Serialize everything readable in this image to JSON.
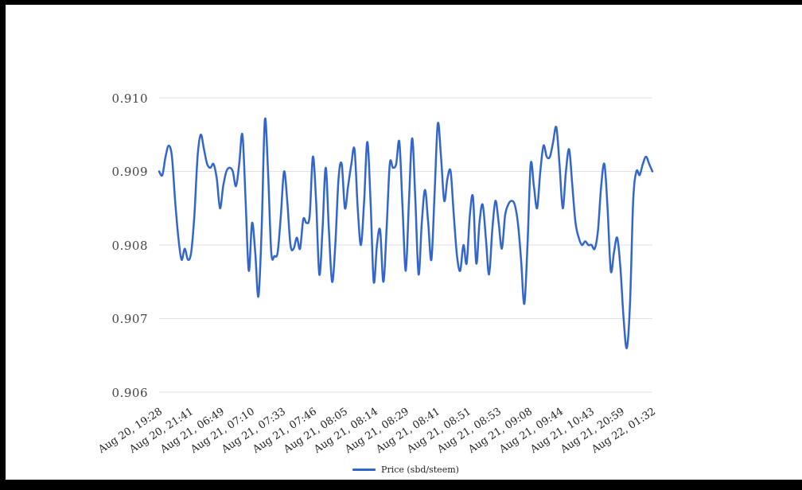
{
  "window": {
    "frame_color": "#000000",
    "background": "#ffffff"
  },
  "chart_data": {
    "type": "line",
    "title": "",
    "grid": true,
    "legend_position": "bottom",
    "line_color": "#3366cc",
    "gridline_color": "#e2e2e2",
    "ylim": [
      0.906,
      0.91
    ],
    "y_tick_labels": [
      "0.910",
      "0.909",
      "0.908",
      "0.907",
      "0.906"
    ],
    "y_ticks": [
      0.91,
      0.909,
      0.908,
      0.907,
      0.906
    ],
    "x_tick_labels": [
      "Aug 20, 19:28",
      "Aug 20, 21:41",
      "Aug 21, 06:49",
      "Aug 21, 07:10",
      "Aug 21, 07:33",
      "Aug 21, 07:46",
      "Aug 21, 08:05",
      "Aug 21, 08:14",
      "Aug 21, 08:29",
      "Aug 21, 08:41",
      "Aug 21, 08:51",
      "Aug 21, 08:53",
      "Aug 21, 09:08",
      "Aug 21, 09:44",
      "Aug 21, 10:43",
      "Aug 21, 20:59",
      "Aug 22, 01:32"
    ],
    "series": [
      {
        "name": "Price (sbd/steem)",
        "color": "#3366cc",
        "values": [
          0.909,
          0.90895,
          0.9092,
          0.90935,
          0.9092,
          0.9086,
          0.9081,
          0.9078,
          0.90795,
          0.9078,
          0.9079,
          0.9084,
          0.9092,
          0.9095,
          0.9093,
          0.9091,
          0.90905,
          0.9091,
          0.9089,
          0.9085,
          0.9088,
          0.909,
          0.90905,
          0.909,
          0.9088,
          0.9091,
          0.9095,
          0.9086,
          0.90765,
          0.9083,
          0.9079,
          0.9073,
          0.9082,
          0.9097,
          0.909,
          0.9079,
          0.90785,
          0.9079,
          0.9084,
          0.909,
          0.9086,
          0.908,
          0.90795,
          0.9081,
          0.90795,
          0.90835,
          0.9083,
          0.9084,
          0.9092,
          0.9086,
          0.9076,
          0.9082,
          0.90905,
          0.9082,
          0.9075,
          0.908,
          0.9089,
          0.9091,
          0.9085,
          0.9088,
          0.9091,
          0.9093,
          0.9085,
          0.908,
          0.9086,
          0.9094,
          0.9086,
          0.9075,
          0.908,
          0.9082,
          0.9075,
          0.9082,
          0.9091,
          0.90905,
          0.9091,
          0.9094,
          0.9085,
          0.90765,
          0.9086,
          0.90945,
          0.9086,
          0.9076,
          0.9083,
          0.90875,
          0.9083,
          0.9078,
          0.9087,
          0.90965,
          0.9092,
          0.9086,
          0.9089,
          0.909,
          0.9084,
          0.90785,
          0.90765,
          0.908,
          0.90775,
          0.9084,
          0.90865,
          0.90775,
          0.9083,
          0.90855,
          0.9081,
          0.9076,
          0.9082,
          0.9086,
          0.9083,
          0.90795,
          0.9084,
          0.90855,
          0.9086,
          0.90855,
          0.9083,
          0.9078,
          0.9072,
          0.908,
          0.9091,
          0.9088,
          0.9085,
          0.909,
          0.90935,
          0.9092,
          0.9092,
          0.9094,
          0.9096,
          0.9091,
          0.9085,
          0.909,
          0.9093,
          0.9088,
          0.9083,
          0.9081,
          0.908,
          0.90805,
          0.908,
          0.908,
          0.90795,
          0.9082,
          0.9088,
          0.9091,
          0.9085,
          0.90765,
          0.9079,
          0.9081,
          0.9077,
          0.907,
          0.9066,
          0.9072,
          0.9086,
          0.909,
          0.90895,
          0.9091,
          0.9092,
          0.9091,
          0.909
        ]
      }
    ]
  },
  "legend": {
    "label": "Price (sbd/steem)"
  }
}
